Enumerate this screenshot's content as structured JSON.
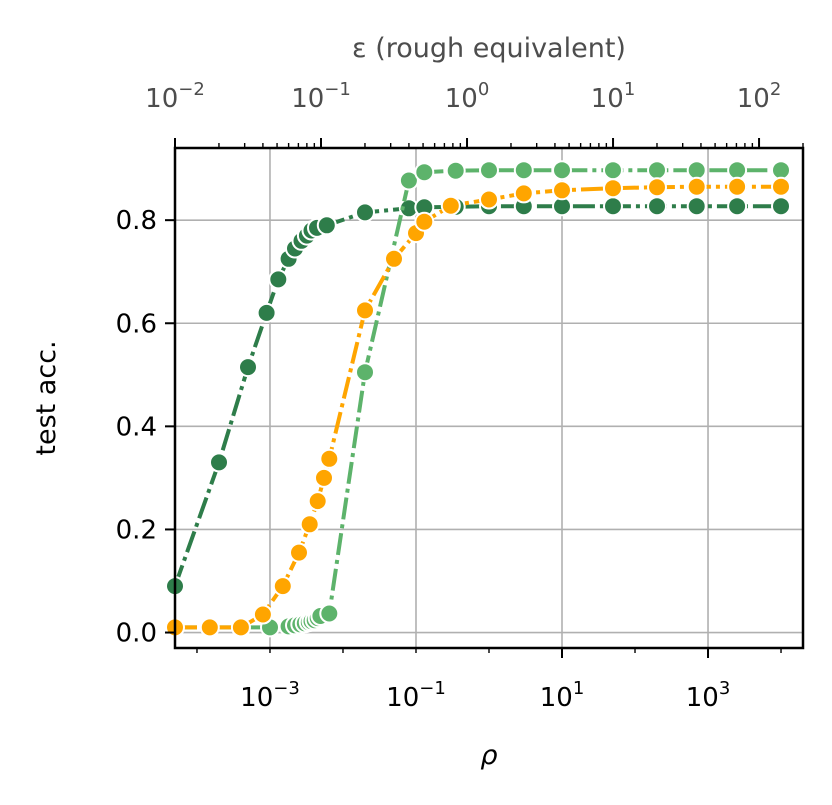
{
  "chart_data": {
    "type": "line",
    "xlabel": "ρ",
    "ylabel": "test acc.",
    "top_xlabel": "ε (rough equivalent)",
    "xscale": "log",
    "top_xscale": "log",
    "xlim": [
      5e-05,
      20000
    ],
    "top_xlim": [
      0.01,
      200
    ],
    "ylim": [
      -0.03,
      0.94
    ],
    "grid": true,
    "legend": "none",
    "x_ticks": [
      {
        "value": 0.001,
        "base": "10",
        "exp": "−3"
      },
      {
        "value": 0.1,
        "base": "10",
        "exp": "−1"
      },
      {
        "value": 10,
        "base": "10",
        "exp": "1"
      },
      {
        "value": 1000,
        "base": "10",
        "exp": "3"
      }
    ],
    "top_x_ticks": [
      {
        "value": 0.01,
        "base": "10",
        "exp": "−2"
      },
      {
        "value": 0.1,
        "base": "10",
        "exp": "−1"
      },
      {
        "value": 1,
        "base": "10",
        "exp": "0"
      },
      {
        "value": 10,
        "base": "10",
        "exp": "1"
      },
      {
        "value": 100,
        "base": "10",
        "exp": "2"
      }
    ],
    "y_ticks": [
      0.0,
      0.2,
      0.4,
      0.6,
      0.8
    ],
    "y_tick_labels": [
      "0.0",
      "0.2",
      "0.4",
      "0.6",
      "0.8"
    ],
    "series": [
      {
        "color": "#2e7d4a",
        "x": [
          5e-05,
          0.0002,
          0.0005,
          0.0009,
          0.0013,
          0.0018,
          0.0022,
          0.0027,
          0.0032,
          0.0037,
          0.0044,
          0.006,
          0.02,
          0.08,
          0.13,
          0.35,
          1.0,
          3.0,
          10,
          50,
          200,
          700,
          2500,
          10000
        ],
        "y": [
          0.09,
          0.33,
          0.515,
          0.62,
          0.685,
          0.725,
          0.745,
          0.76,
          0.77,
          0.78,
          0.785,
          0.79,
          0.815,
          0.823,
          0.825,
          0.826,
          0.827,
          0.827,
          0.827,
          0.827,
          0.827,
          0.827,
          0.827,
          0.827
        ]
      },
      {
        "color": "#5db36b",
        "x": [
          5e-05,
          0.00015,
          0.0004,
          0.001,
          0.0018,
          0.0022,
          0.0026,
          0.003,
          0.0034,
          0.0037,
          0.0041,
          0.0045,
          0.0049,
          0.0065,
          0.02,
          0.08,
          0.13,
          0.35,
          1.0,
          3.0,
          10,
          50,
          200,
          700,
          2500,
          10000
        ],
        "y": [
          0.01,
          0.01,
          0.01,
          0.01,
          0.012,
          0.014,
          0.016,
          0.018,
          0.02,
          0.022,
          0.024,
          0.028,
          0.032,
          0.037,
          0.505,
          0.877,
          0.893,
          0.896,
          0.897,
          0.897,
          0.897,
          0.897,
          0.897,
          0.897,
          0.897,
          0.897
        ]
      },
      {
        "color": "#ffa500",
        "x": [
          5e-05,
          0.00015,
          0.0004,
          0.0008,
          0.0015,
          0.0025,
          0.0035,
          0.0045,
          0.0055,
          0.0065,
          0.02,
          0.05,
          0.1,
          0.13,
          0.3,
          1.0,
          3.0,
          10,
          50,
          200,
          700,
          2500,
          10000
        ],
        "y": [
          0.01,
          0.01,
          0.01,
          0.035,
          0.09,
          0.155,
          0.21,
          0.255,
          0.3,
          0.337,
          0.625,
          0.725,
          0.775,
          0.797,
          0.828,
          0.84,
          0.852,
          0.858,
          0.862,
          0.864,
          0.865,
          0.865,
          0.865
        ]
      }
    ]
  }
}
